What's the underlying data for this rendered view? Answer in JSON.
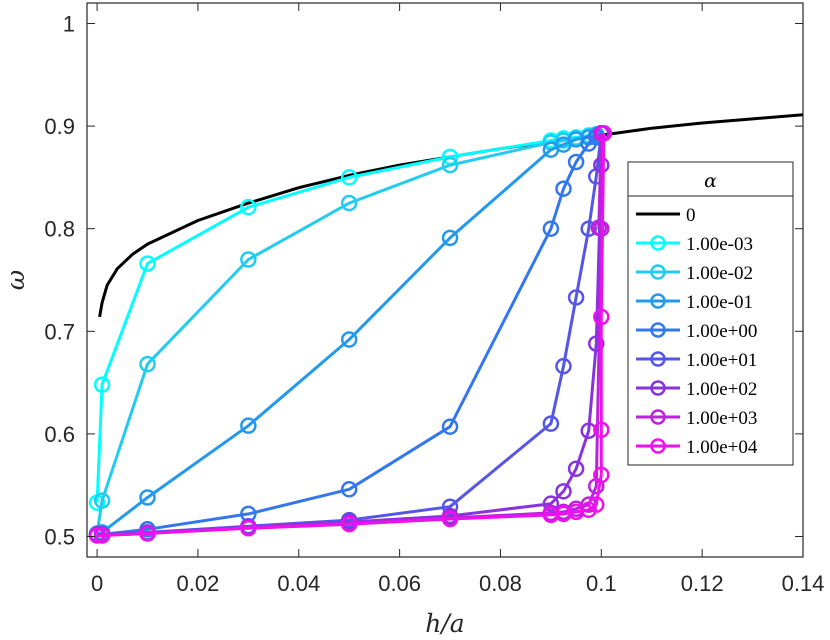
{
  "chart_data": {
    "type": "line",
    "xlabel": "h/a",
    "ylabel": "ω",
    "xlim": [
      -0.002,
      0.14
    ],
    "ylim": [
      0.48,
      1.02
    ],
    "xticks": [
      0,
      0.02,
      0.04,
      0.06,
      0.08,
      0.1,
      0.12,
      0.14
    ],
    "xtick_labels": [
      "0",
      "0.02",
      "0.04",
      "0.06",
      "0.08",
      "0.1",
      "0.12",
      "0.14"
    ],
    "yticks": [
      0.5,
      0.6,
      0.7,
      0.8,
      0.9,
      1.0
    ],
    "ytick_labels": [
      "0.5",
      "0.6",
      "0.7",
      "0.8",
      "0.9",
      "1"
    ],
    "legend_title": "α",
    "legend_position": "center-right",
    "grid": false,
    "x_points": [
      0,
      0.001,
      0.01,
      0.03,
      0.05,
      0.07,
      0.09,
      0.0925,
      0.095,
      0.0975,
      0.099,
      0.1
    ],
    "series": [
      {
        "name": "0",
        "color": "#000000",
        "markers": false,
        "x": [
          0.0005,
          0.001,
          0.002,
          0.004,
          0.007,
          0.01,
          0.02,
          0.03,
          0.04,
          0.05,
          0.06,
          0.07,
          0.08,
          0.09,
          0.1,
          0.11,
          0.12,
          0.13,
          0.14
        ],
        "y": [
          0.714,
          0.728,
          0.745,
          0.761,
          0.775,
          0.785,
          0.808,
          0.825,
          0.84,
          0.852,
          0.862,
          0.87,
          0.878,
          0.885,
          0.891,
          0.898,
          0.903,
          0.907,
          0.911
        ]
      },
      {
        "name": "1.00e-03",
        "color": "#00ffff",
        "markers": true,
        "y": [
          0.533,
          0.648,
          0.766,
          0.821,
          0.85,
          0.87,
          0.886,
          0.888,
          0.889,
          0.891,
          0.892,
          0.893
        ]
      },
      {
        "name": "1.00e-02",
        "color": "#22ccee",
        "markers": true,
        "y": [
          0.503,
          0.535,
          0.668,
          0.77,
          0.825,
          0.862,
          0.884,
          0.886,
          0.888,
          0.89,
          0.892,
          0.893
        ]
      },
      {
        "name": "1.00e-01",
        "color": "#2299ee",
        "markers": true,
        "y": [
          0.502,
          0.504,
          0.538,
          0.608,
          0.692,
          0.791,
          0.877,
          0.882,
          0.887,
          0.889,
          0.891,
          0.893
        ]
      },
      {
        "name": "1.00e+00",
        "color": "#3377ee",
        "markers": true,
        "y": [
          0.502,
          0.502,
          0.507,
          0.522,
          0.546,
          0.607,
          0.8,
          0.839,
          0.865,
          0.883,
          0.889,
          0.893
        ]
      },
      {
        "name": "1.00e+01",
        "color": "#5555e8",
        "markers": true,
        "y": [
          0.502,
          0.502,
          0.504,
          0.51,
          0.516,
          0.529,
          0.61,
          0.666,
          0.733,
          0.8,
          0.851,
          0.893
        ]
      },
      {
        "name": "1.00e+02",
        "color": "#8833dd",
        "markers": true,
        "y": [
          0.502,
          0.502,
          0.503,
          0.509,
          0.514,
          0.52,
          0.532,
          0.544,
          0.566,
          0.603,
          0.688,
          0.862
        ]
      },
      {
        "name": "1.00e+03",
        "color": "#bb22dd",
        "markers": true,
        "y": [
          0.501,
          0.501,
          0.503,
          0.509,
          0.513,
          0.518,
          0.523,
          0.524,
          0.527,
          0.531,
          0.549,
          0.8
        ]
      },
      {
        "name": "1.00e+04",
        "color": "#ee11ee",
        "markers": true,
        "y": [
          0.501,
          0.501,
          0.503,
          0.508,
          0.512,
          0.517,
          0.521,
          0.522,
          0.524,
          0.526,
          0.531,
          0.56
        ]
      }
    ],
    "extra_points": {
      "1.00e+03": [
        [
          0.0995,
          0.801
        ],
        [
          0.1,
          0.893
        ]
      ],
      "1.00e+04": [
        [
          0.1,
          0.604
        ],
        [
          0.1,
          0.714
        ],
        [
          0.1005,
          0.893
        ]
      ]
    }
  }
}
